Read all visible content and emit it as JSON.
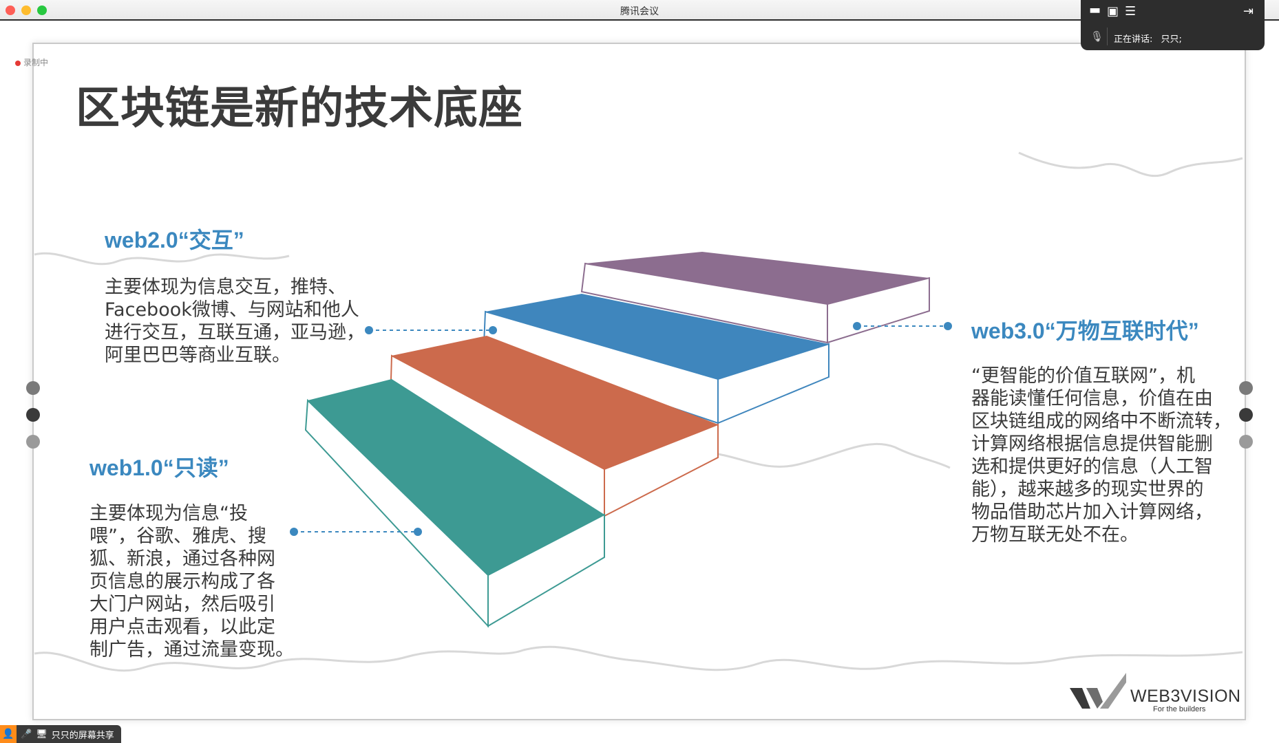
{
  "window": {
    "title": "腾讯会议"
  },
  "meeting_panel": {
    "speaking_label": "正在讲话:",
    "speaker": "只只;"
  },
  "recording": {
    "label": "录制中"
  },
  "slide": {
    "title": "区块链是新的技术底座",
    "web2": {
      "heading": "web2.0“交互”",
      "lines": [
        "主要体现为信息交互，推特、",
        "Facebook微博、与网站和他人",
        "进行交互，互联互通，亚马逊，",
        "阿里巴巴等商业互联。"
      ]
    },
    "web1": {
      "heading": "web1.0“只读”",
      "lines": [
        "主要体现为信息“投",
        "喂”，谷歌、雅虎、搜",
        "狐、新浪，通过各种网",
        "页信息的展示构成了各",
        "大门户网站，然后吸引",
        "用户点击观看，以此定",
        "制广告，通过流量变现。"
      ]
    },
    "web3": {
      "heading": "web3.0“万物互联时代”",
      "lines": [
        "“更智能的价值互联网”，机",
        "器能读懂任何信息，价值在由",
        "区块链组成的网络中不断流转，",
        "计算网络根据信息提供智能删",
        "选和提供更好的信息（人工智",
        "能），越来越多的现实世界的",
        "物品借助芯片加入计算网络，",
        "万物互联无处不在。"
      ]
    },
    "logo": {
      "name": "WEB3VISION",
      "tagline": "For the builders"
    },
    "step_colors": {
      "teal": "#3d9a93",
      "orange": "#cc6a4c",
      "blue": "#3f86bd",
      "purple": "#8c6d8f"
    },
    "heading_color": "#3b88bf"
  },
  "bottom_bar": {
    "share_label": "只只的屏幕共享"
  }
}
